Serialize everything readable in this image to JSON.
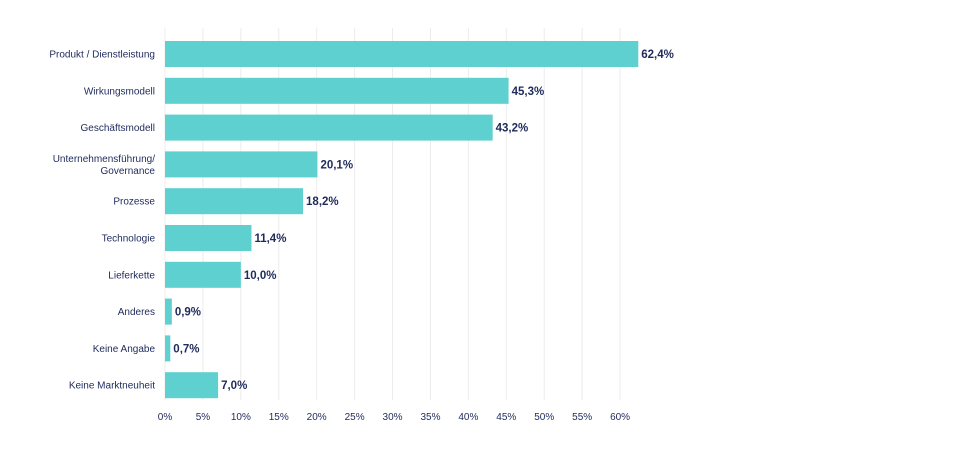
{
  "chart_data": {
    "type": "bar",
    "orientation": "horizontal",
    "categories": [
      "Produkt / Dienstleistung",
      "Wirkungsmodell",
      "Geschäftsmodell",
      "Unternehmensführung/\nGovernance",
      "Prozesse",
      "Technologie",
      "Lieferkette",
      "Anderes",
      "Keine Angabe",
      "Keine Marktneuheit"
    ],
    "values": [
      62.4,
      45.3,
      43.2,
      20.1,
      18.2,
      11.4,
      10.0,
      0.9,
      0.7,
      7.0
    ],
    "value_labels": [
      "62,4%",
      "45,3%",
      "43,2%",
      "20,1%",
      "18,2%",
      "11,4%",
      "10,0%",
      "0,9%",
      "0,7%",
      "7,0%"
    ],
    "x_ticks": [
      0,
      5,
      10,
      15,
      20,
      25,
      30,
      35,
      40,
      45,
      50,
      55,
      60
    ],
    "x_tick_labels": [
      "0%",
      "5%",
      "10%",
      "15%",
      "20%",
      "25%",
      "30%",
      "35%",
      "40%",
      "45%",
      "50%",
      "55%",
      "60%"
    ],
    "xlim": [
      0,
      65
    ],
    "grid": true,
    "title": "",
    "xlabel": "",
    "ylabel": "",
    "colors": {
      "bar": "#5dd0cf",
      "text": "#1f2a5c",
      "grid": "#ececec"
    }
  }
}
